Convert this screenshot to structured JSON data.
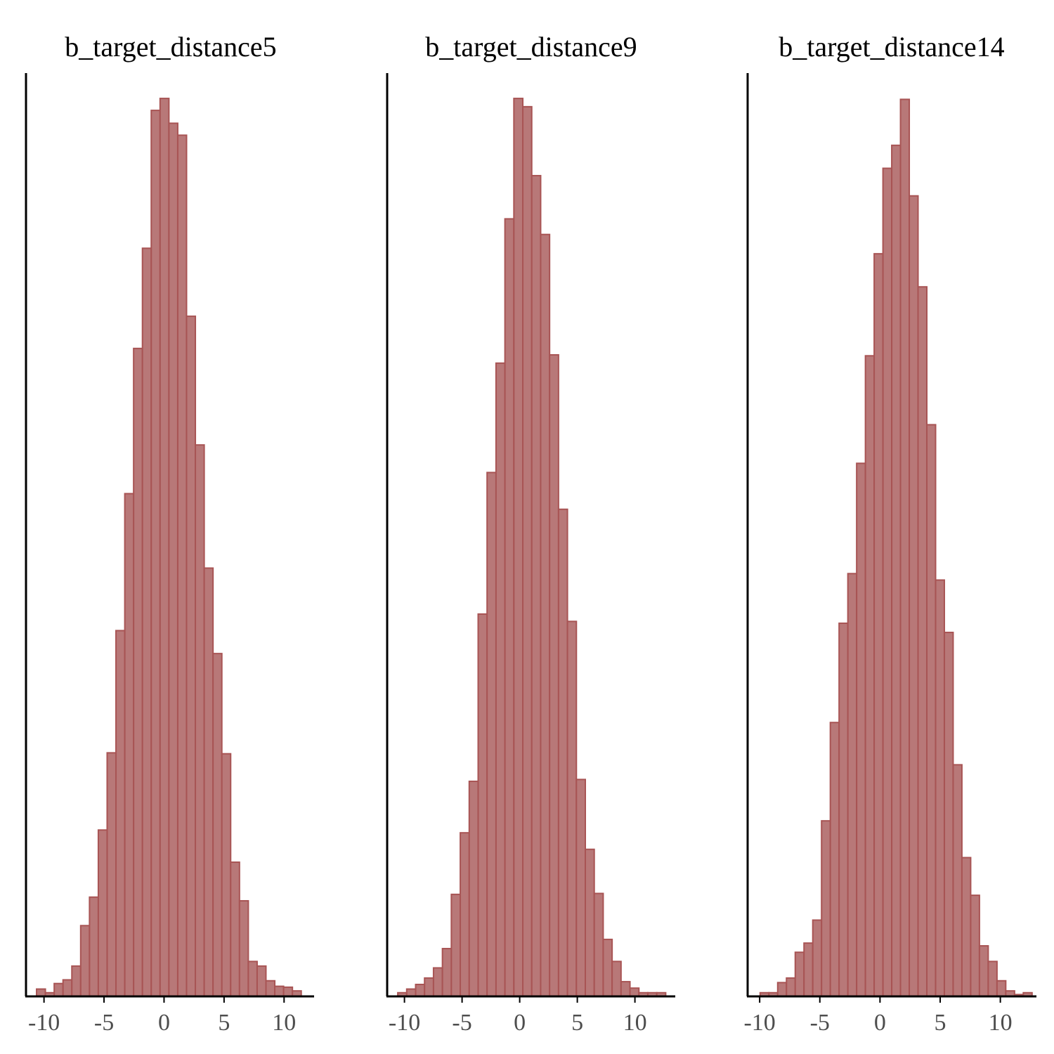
{
  "colors": {
    "bar_fill": "#b87878",
    "bar_stroke": "#a85454",
    "axis": "#000000",
    "tick_text": "#4d4d4d"
  },
  "chart_data": [
    {
      "type": "bar",
      "title": "b_target_distance5",
      "xlabel": "",
      "ylabel": "",
      "xlim": [
        -11.5,
        12.5
      ],
      "ylim": [
        0,
        100
      ],
      "xticks": [
        -10,
        -5,
        0,
        5,
        10
      ],
      "tick_labels": [
        "-10",
        "-5",
        "0",
        "5",
        "10"
      ],
      "bin_start": -10.62,
      "bin_width": 0.735,
      "values": [
        0.8,
        0.4,
        1.4,
        1.8,
        3.3,
        7.7,
        10.8,
        18.1,
        26.5,
        39.8,
        54.7,
        70.5,
        81.4,
        96.4,
        97.7,
        95.0,
        93.7,
        74.0,
        60.0,
        46.6,
        37.3,
        26.4,
        14.6,
        10.4,
        3.8,
        3.3,
        1.7,
        1.1,
        1.0,
        0.6
      ]
    },
    {
      "type": "bar",
      "title": "b_target_distance9",
      "xlabel": "",
      "ylabel": "",
      "xlim": [
        -11.5,
        13.5
      ],
      "ylim": [
        0,
        100
      ],
      "xticks": [
        -10,
        -5,
        0,
        5,
        10
      ],
      "tick_labels": [
        "-10",
        "-5",
        "0",
        "5",
        "10"
      ],
      "bin_start": -10.58,
      "bin_width": 0.775,
      "values": [
        0.4,
        0.8,
        1.3,
        2.0,
        3.1,
        5.2,
        11.1,
        17.8,
        23.4,
        41.6,
        57.0,
        68.9,
        84.6,
        97.7,
        96.8,
        89.3,
        82.9,
        69.8,
        53.0,
        40.8,
        23.6,
        16.0,
        11.2,
        6.2,
        3.8,
        1.6,
        0.9,
        0.4,
        0.4,
        0.4
      ]
    },
    {
      "type": "bar",
      "title": "b_target_distance14",
      "xlabel": "",
      "ylabel": "",
      "xlim": [
        -11,
        13
      ],
      "ylim": [
        0,
        100
      ],
      "xticks": [
        -10,
        -5,
        0,
        5,
        10
      ],
      "tick_labels": [
        "-10",
        "-5",
        "0",
        "5",
        "10"
      ],
      "bin_start": -9.96,
      "bin_width": 0.729,
      "values": [
        0.4,
        0.4,
        1.5,
        2.0,
        4.8,
        5.8,
        8.3,
        19.1,
        29.8,
        40.6,
        46.0,
        58.0,
        69.7,
        80.8,
        90.1,
        92.6,
        97.6,
        87.1,
        77.2,
        62.2,
        45.3,
        39.6,
        25.2,
        15.1,
        11.0,
        5.5,
        3.8,
        1.7,
        0.6,
        0.2,
        0.4
      ]
    }
  ]
}
